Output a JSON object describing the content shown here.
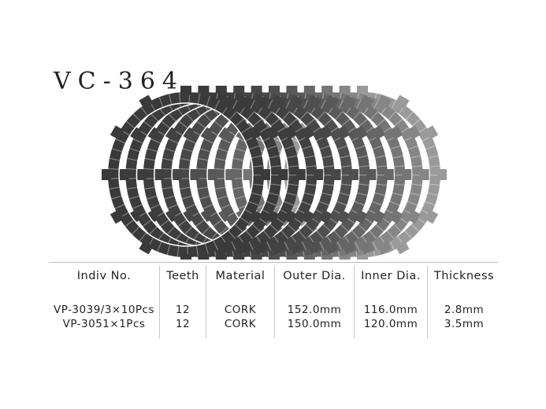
{
  "product_code": "VC-364",
  "table": {
    "headers": [
      "Indiv No.",
      "Teeth",
      "Material",
      "Outer Dia.",
      "Inner Dia.",
      "Thickness"
    ],
    "rows": [
      [
        "VP-3039/3×10Pcs",
        "12",
        "CORK",
        "152.0mm",
        "116.0mm",
        "2.8mm"
      ],
      [
        "VP-3051×1Pcs",
        "12",
        "CORK",
        "150.0mm",
        "120.0mm",
        "3.5mm"
      ]
    ]
  },
  "image": {
    "plate_count": 11,
    "plate_color_dark": "#3a3a3a",
    "plate_color_light": "#9a9a9a"
  }
}
